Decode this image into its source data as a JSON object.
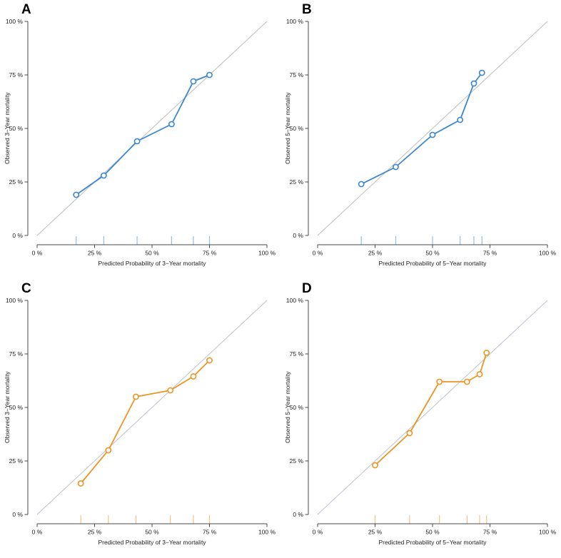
{
  "figure": {
    "background": "#ffffff",
    "description": "Four-panel calibration plot figure (A, B, C, D) of predicted vs observed mortality"
  },
  "chart_data": [
    {
      "panel_label": "A",
      "type": "line",
      "xlabel": "Predicted Probability of 3−Year mortality",
      "ylabel": "Observed 3−Year mortality",
      "xlim": [
        0,
        100
      ],
      "ylim": [
        0,
        100
      ],
      "x_tick_labels": [
        "0 %",
        "25 %",
        "50 %",
        "75 %",
        "100 %"
      ],
      "y_tick_labels": [
        "0 %",
        "25 %",
        "50 %",
        "75 %",
        "100 %"
      ],
      "grid": false,
      "legend": "none",
      "reference_line": "diagonal 45-degree ideal calibration",
      "marker": "open-circle",
      "series": [
        {
          "name": "calibration-curve",
          "x": [
            17,
            29,
            43.5,
            58.5,
            68,
            75
          ],
          "y": [
            19,
            28,
            44,
            52,
            72,
            75
          ]
        }
      ],
      "rug_x": [
        17,
        29,
        43.5,
        58.5,
        68,
        75
      ],
      "line_color": "#3b87d0",
      "rug_color": "#8fc0ea",
      "diagonal_color": "#bdbdbd",
      "axis_color": "#4a4a4a"
    },
    {
      "panel_label": "B",
      "type": "line",
      "xlabel": "Predicted Probability of 5−Year mortality",
      "ylabel": "Observed 5−Year mortality",
      "xlim": [
        0,
        100
      ],
      "ylim": [
        0,
        100
      ],
      "x_tick_labels": [
        "0 %",
        "25 %",
        "50 %",
        "75 %",
        "100 %"
      ],
      "y_tick_labels": [
        "0 %",
        "25 %",
        "50 %",
        "75 %",
        "100 %"
      ],
      "grid": false,
      "legend": "none",
      "reference_line": "diagonal 45-degree ideal calibration",
      "marker": "open-circle",
      "series": [
        {
          "name": "calibration-curve",
          "x": [
            19,
            34,
            50,
            62,
            68,
            71.5
          ],
          "y": [
            24,
            32,
            47,
            54,
            71,
            76
          ]
        }
      ],
      "rug_x": [
        19,
        34,
        50,
        62,
        68,
        71.5
      ],
      "line_color": "#3b87d0",
      "rug_color": "#8fc0ea",
      "diagonal_color": "#bdbdbd",
      "axis_color": "#4a4a4a"
    },
    {
      "panel_label": "C",
      "type": "line",
      "xlabel": "Predicted Probability of 3−Year mortality",
      "ylabel": "Observed 3−Year mortality",
      "xlim": [
        0,
        100
      ],
      "ylim": [
        0,
        100
      ],
      "x_tick_labels": [
        "0 %",
        "25 %",
        "50 %",
        "75 %",
        "100 %"
      ],
      "y_tick_labels": [
        "0 %",
        "25 %",
        "50 %",
        "75 %",
        "100 %"
      ],
      "grid": false,
      "legend": "none",
      "reference_line": "diagonal 45-degree ideal calibration",
      "marker": "open-circle",
      "series": [
        {
          "name": "calibration-curve",
          "x": [
            19,
            31,
            43,
            58,
            68,
            75
          ],
          "y": [
            14.5,
            30,
            55,
            58,
            64.5,
            72
          ]
        }
      ],
      "rug_x": [
        19,
        31,
        43,
        58,
        68,
        75
      ],
      "line_color": "#ec9424",
      "rug_color": "#f5c487",
      "diagonal_color": "#bcc2cc",
      "axis_color": "#4a4a4a"
    },
    {
      "panel_label": "D",
      "type": "line",
      "xlabel": "Predicted Probability of 5−Year mortality",
      "ylabel": "Observed 5−Year mortality",
      "xlim": [
        0,
        100
      ],
      "ylim": [
        0,
        100
      ],
      "x_tick_labels": [
        "0 %",
        "25 %",
        "50 %",
        "75 %",
        "100 %"
      ],
      "y_tick_labels": [
        "0 %",
        "25 %",
        "50 %",
        "75 %",
        "100 %"
      ],
      "grid": false,
      "legend": "none",
      "reference_line": "diagonal 45-degree ideal calibration",
      "marker": "open-circle",
      "series": [
        {
          "name": "calibration-curve",
          "x": [
            25,
            40,
            53,
            65,
            70.5,
            73.5
          ],
          "y": [
            23,
            38,
            62,
            62,
            65.5,
            75.5
          ]
        }
      ],
      "rug_x": [
        25,
        40,
        53,
        65,
        70.5,
        73.5
      ],
      "line_color": "#ec9424",
      "rug_color": "#f5c487",
      "diagonal_color": "#bcc2cc",
      "axis_color": "#4a4a4a"
    }
  ]
}
